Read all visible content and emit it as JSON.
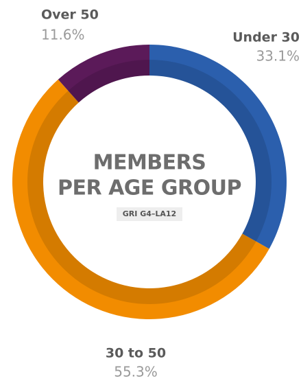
{
  "chart_data": {
    "type": "pie",
    "donut": true,
    "title": [
      "MEMBERS",
      "PER AGE GROUP"
    ],
    "subtitle": "GRI G4–LA12",
    "categories": [
      "Under 30",
      "30 to 50",
      "Over 50"
    ],
    "values": [
      33.1,
      55.3,
      11.6
    ],
    "value_labels": [
      "33.1%",
      "55.3%",
      "11.6%"
    ],
    "colors": [
      "#2b5fad",
      "#f28c00",
      "#5b1a59"
    ]
  }
}
